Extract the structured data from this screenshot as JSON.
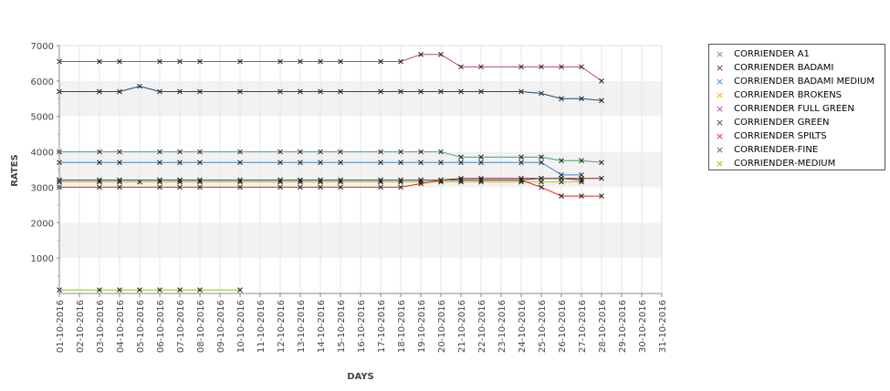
{
  "chart_data": {
    "type": "line",
    "title": "",
    "xlabel": "DAYS",
    "ylabel": "RATES",
    "ylim": [
      0,
      7000
    ],
    "yticks": [
      1000,
      2000,
      3000,
      4000,
      5000,
      6000,
      7000
    ],
    "grid": true,
    "legend_position": "right",
    "categories": [
      "01-10-2016",
      "02-10-2016",
      "03-10-2016",
      "04-10-2016",
      "05-10-2016",
      "06-10-2016",
      "07-10-2016",
      "08-10-2016",
      "09-10-2016",
      "10-10-2016",
      "11-10-2016",
      "12-10-2016",
      "13-10-2016",
      "14-10-2016",
      "15-10-2016",
      "16-10-2016",
      "17-10-2016",
      "18-10-2016",
      "19-10-2016",
      "20-10-2016",
      "21-10-2016",
      "22-10-2016",
      "23-10-2016",
      "24-10-2016",
      "25-10-2016",
      "26-10-2016",
      "27-10-2016",
      "28-10-2016",
      "29-10-2016",
      "30-10-2016",
      "31-10-2016"
    ],
    "series": [
      {
        "name": "CORRIENDER A1",
        "color": "#4a9e7e",
        "values": [
          4000,
          null,
          4000,
          4000,
          null,
          4000,
          4000,
          4000,
          null,
          4000,
          null,
          4000,
          4000,
          4000,
          4000,
          null,
          4000,
          4000,
          4000,
          4000,
          3850,
          3850,
          null,
          3850,
          3850,
          3750,
          3750,
          3700,
          null,
          null,
          null
        ]
      },
      {
        "name": "CORRIENDER BADAMI",
        "color": "#8b1a1a",
        "values": [
          3200,
          null,
          3200,
          3200,
          null,
          3200,
          3200,
          3200,
          null,
          3200,
          null,
          3200,
          3200,
          3200,
          3200,
          null,
          3200,
          3200,
          3200,
          3200,
          3250,
          3250,
          null,
          3250,
          3250,
          3250,
          3250,
          3250,
          null,
          null,
          null
        ]
      },
      {
        "name": "CORRIENDER BADAMI MEDIUM",
        "color": "#3a88c8",
        "values": [
          3700,
          null,
          3700,
          3700,
          null,
          3700,
          3700,
          3700,
          null,
          3700,
          null,
          3700,
          3700,
          3700,
          3700,
          null,
          3700,
          3700,
          3700,
          3700,
          3700,
          3700,
          null,
          3700,
          3700,
          3350,
          3350,
          null,
          null,
          null,
          null
        ]
      },
      {
        "name": "CORRIENDER BROKENS",
        "color": "#c8c800",
        "values": [
          3150,
          null,
          3150,
          3150,
          3150,
          3150,
          3150,
          3150,
          null,
          3150,
          null,
          3150,
          3150,
          3150,
          3150,
          null,
          3150,
          3150,
          3150,
          3150,
          3150,
          3150,
          null,
          3150,
          3150,
          3150,
          3150,
          null,
          null,
          null,
          null
        ]
      },
      {
        "name": "CORRIENDER FULL GREEN",
        "color": "#c04070",
        "values": [
          6550,
          null,
          6550,
          6550,
          null,
          6550,
          6550,
          6550,
          null,
          6550,
          null,
          6550,
          6550,
          6550,
          6550,
          null,
          6550,
          6550,
          6750,
          6750,
          6400,
          6400,
          null,
          6400,
          6400,
          6400,
          6400,
          6000,
          null,
          null,
          null
        ]
      },
      {
        "name": "CORRIENDER GREEN",
        "color": "#1a4a7a",
        "values": [
          5700,
          null,
          5700,
          5700,
          5850,
          5700,
          5700,
          5700,
          null,
          5700,
          null,
          5700,
          5700,
          5700,
          5700,
          null,
          5700,
          5700,
          5700,
          5700,
          5700,
          5700,
          null,
          5700,
          5650,
          5500,
          5500,
          5450,
          null,
          null,
          null
        ]
      },
      {
        "name": "CORRIENDER SPILTS",
        "color": "#e02020",
        "values": [
          3000,
          null,
          3000,
          3000,
          null,
          3000,
          3000,
          3000,
          null,
          3000,
          null,
          3000,
          3000,
          3000,
          3000,
          null,
          3000,
          3000,
          3100,
          3200,
          3200,
          3200,
          null,
          3200,
          3000,
          2750,
          2750,
          2750,
          null,
          null,
          null
        ]
      },
      {
        "name": "CORRIENDER-FINE",
        "color": "#506040",
        "values": [
          3200,
          null,
          3200,
          3200,
          null,
          3200,
          3200,
          3200,
          null,
          3200,
          null,
          3200,
          3200,
          3200,
          3200,
          null,
          3200,
          3200,
          3200,
          3200,
          3200,
          3200,
          null,
          3200,
          3250,
          3250,
          3200,
          null,
          null,
          null,
          null
        ]
      },
      {
        "name": "CORRIENDER-MEDIUM",
        "color": "#80c020",
        "values": [
          100,
          null,
          100,
          100,
          100,
          100,
          100,
          100,
          null,
          100,
          null,
          null,
          null,
          null,
          null,
          null,
          null,
          null,
          null,
          null,
          null,
          null,
          null,
          null,
          null,
          null,
          null,
          null,
          null,
          null,
          null
        ]
      }
    ]
  }
}
